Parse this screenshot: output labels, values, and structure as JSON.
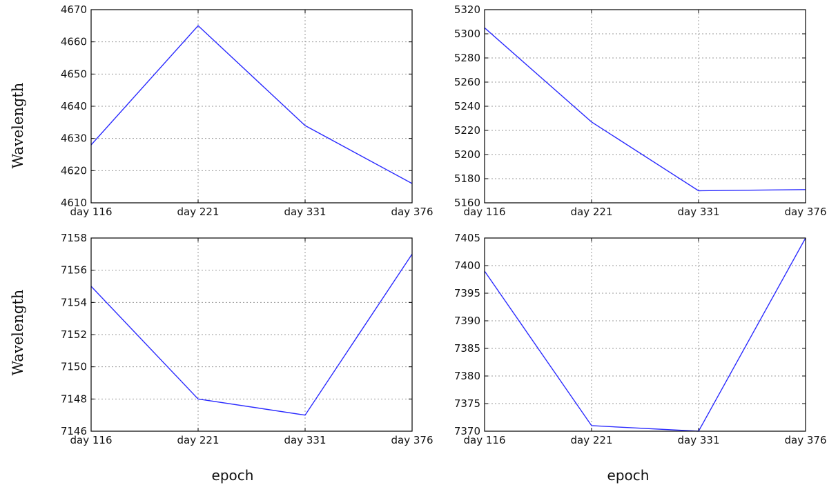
{
  "figure": {
    "ylabel_top": "Wavelength",
    "ylabel_bottom": "Wavelength",
    "xlabel_left": "epoch",
    "xlabel_right": "epoch",
    "line_color": "#2b2bff"
  },
  "chart_data": [
    {
      "type": "line",
      "categories": [
        "day 116",
        "day 221",
        "day 331",
        "day 376"
      ],
      "values": [
        4628,
        4665,
        4634,
        4616
      ],
      "ylim": [
        4610,
        4670
      ],
      "yticks": [
        4610,
        4620,
        4630,
        4640,
        4650,
        4660,
        4670
      ],
      "grid": true
    },
    {
      "type": "line",
      "categories": [
        "day 116",
        "day 221",
        "day 331",
        "day 376"
      ],
      "values": [
        5305,
        5227,
        5170,
        5171
      ],
      "ylim": [
        5160,
        5320
      ],
      "yticks": [
        5160,
        5180,
        5200,
        5220,
        5240,
        5260,
        5280,
        5300,
        5320
      ],
      "grid": true
    },
    {
      "type": "line",
      "categories": [
        "day 116",
        "day 221",
        "day 331",
        "day 376"
      ],
      "values": [
        7155,
        7148,
        7147,
        7157
      ],
      "ylim": [
        7146,
        7158
      ],
      "yticks": [
        7146,
        7148,
        7150,
        7152,
        7154,
        7156,
        7158
      ],
      "grid": true
    },
    {
      "type": "line",
      "categories": [
        "day 116",
        "day 221",
        "day 331",
        "day 376"
      ],
      "values": [
        7399,
        7371,
        7370,
        7405
      ],
      "ylim": [
        7370,
        7405
      ],
      "yticks": [
        7370,
        7375,
        7380,
        7385,
        7390,
        7395,
        7400,
        7405
      ],
      "grid": true
    }
  ]
}
